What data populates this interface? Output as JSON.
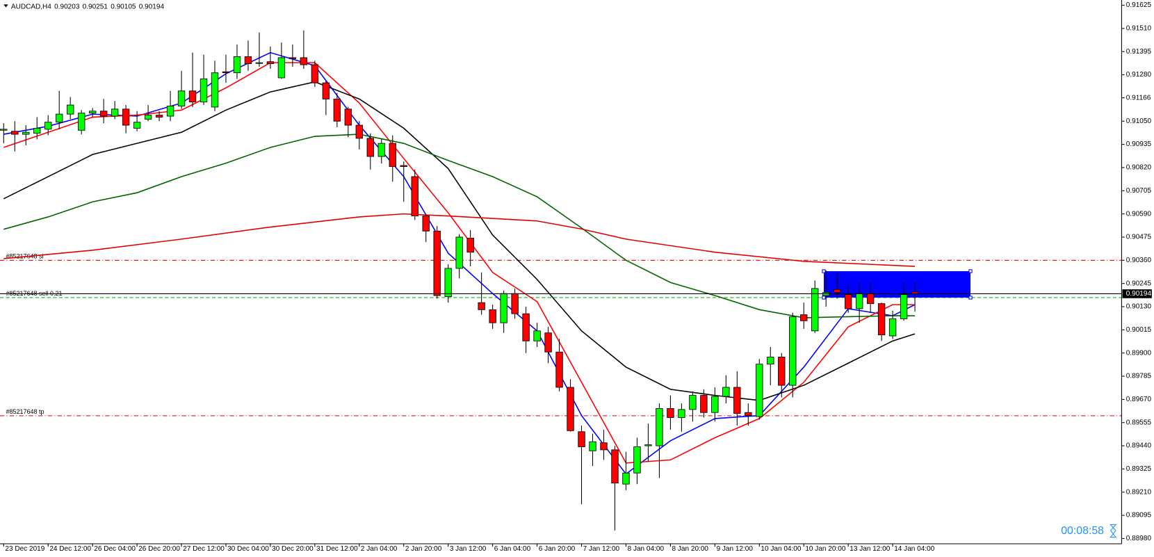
{
  "chart_data": {
    "type": "candlestick",
    "title": "AUDCAD,H4",
    "categories": [
      "23 Dec 2019",
      null,
      null,
      null,
      "24 Dec 12:00",
      null,
      null,
      null,
      "26 Dec 04:00",
      null,
      null,
      null,
      "26 Dec 20:00",
      null,
      null,
      null,
      "27 Dec 12:00",
      null,
      null,
      null,
      "30 Dec 04:00",
      null,
      null,
      null,
      "30 Dec 20:00",
      null,
      null,
      null,
      "31 Dec 12:00",
      null,
      null,
      null,
      "2 Jan 04:00",
      null,
      null,
      null,
      "2 Jan 20:00",
      null,
      null,
      null,
      "3 Jan 12:00",
      null,
      null,
      null,
      "6 Jan 04:00",
      null,
      null,
      null,
      "6 Jan 20:00",
      null,
      null,
      null,
      "7 Jan 12:00",
      null,
      null,
      null,
      "8 Jan 04:00",
      null,
      null,
      null,
      "8 Jan 20:00",
      null,
      null,
      null,
      "9 Jan 12:00",
      null,
      null,
      null,
      "10 Jan 04:00",
      null,
      null,
      null,
      "10 Jan 20:00",
      null,
      null,
      null,
      "13 Jan 12:00",
      null,
      null,
      null,
      "14 Jan 04:00",
      null,
      null
    ],
    "open": [
      0.91005,
      0.91,
      0.90985,
      0.9099,
      0.9101,
      0.91045,
      0.91085,
      0.91005,
      0.9109,
      0.911,
      0.91075,
      0.9111,
      0.91015,
      0.9106,
      0.9108,
      0.91075,
      0.91125,
      0.912,
      0.91145,
      0.9112,
      0.91295,
      0.9129,
      0.9137,
      0.9134,
      0.91345,
      0.91265,
      0.91365,
      0.91365,
      0.9133,
      0.9124,
      0.9116,
      0.9111,
      0.9103,
      0.90965,
      0.90875,
      0.9094,
      0.9083,
      0.90775,
      0.9058,
      0.90505,
      0.9018,
      0.9032,
      0.9047,
      0.9015,
      0.90115,
      0.9005,
      0.90195,
      0.90095,
      0.8996,
      0.9,
      0.89905,
      0.8973,
      0.8951,
      0.89415,
      0.89455,
      0.8942,
      0.8925,
      0.89305,
      0.8944,
      0.8944,
      0.89625,
      0.8958,
      0.8962,
      0.8969,
      0.89605,
      0.89685,
      0.8973,
      0.89605,
      0.89585,
      0.89845,
      0.8988,
      0.8974,
      0.9009,
      0.9001,
      0.90185,
      0.90215,
      0.9019,
      0.9012,
      0.90195,
      0.90145,
      0.89985,
      0.9007,
      0.90203
    ],
    "high": [
      0.9104,
      0.9105,
      0.9103,
      0.9107,
      0.9108,
      0.912,
      0.9117,
      0.91105,
      0.91115,
      0.9116,
      0.9115,
      0.9113,
      0.911,
      0.9113,
      0.911,
      0.912,
      0.913,
      0.9139,
      0.9138,
      0.9135,
      0.9138,
      0.9143,
      0.9145,
      0.9149,
      0.9142,
      0.9144,
      0.9143,
      0.915,
      0.9135,
      0.9125,
      0.9119,
      0.9112,
      0.9105,
      0.9099,
      0.9096,
      0.9098,
      0.9085,
      0.9081,
      0.9059,
      0.9053,
      0.9034,
      0.9049,
      0.9051,
      0.903,
      0.9014,
      0.9021,
      0.9022,
      0.9013,
      0.9005,
      0.9003,
      0.8997,
      0.8977,
      0.8954,
      0.895,
      0.8952,
      0.8944,
      0.8941,
      0.8948,
      0.8955,
      0.8965,
      0.8969,
      0.8965,
      0.8971,
      0.8972,
      0.8973,
      0.8979,
      0.8981,
      0.8965,
      0.8987,
      0.8993,
      0.899,
      0.901,
      0.9015,
      0.9026,
      0.9031,
      0.903,
      0.9024,
      0.9025,
      0.9025,
      0.9015,
      0.9011,
      0.9025,
      0.90251
    ],
    "low": [
      0.9094,
      0.909,
      0.9093,
      0.9096,
      0.9098,
      0.9101,
      0.9106,
      0.90985,
      0.9107,
      0.9104,
      0.9106,
      0.9099,
      0.91,
      0.9105,
      0.9105,
      0.9105,
      0.9111,
      0.9112,
      0.9113,
      0.911,
      0.9124,
      0.9126,
      0.913,
      0.9132,
      0.9131,
      0.9126,
      0.9132,
      0.9131,
      0.9122,
      0.9108,
      0.9102,
      0.9097,
      0.9091,
      0.9081,
      0.9084,
      0.9075,
      0.9065,
      0.9056,
      0.9045,
      0.9017,
      0.9015,
      0.9027,
      0.9033,
      0.9009,
      0.9002,
      0.9,
      0.9007,
      0.899,
      0.8993,
      0.8985,
      0.8971,
      0.8951,
      0.8915,
      0.8934,
      0.8937,
      0.8902,
      0.8922,
      0.8925,
      0.8936,
      0.8928,
      0.8952,
      0.8951,
      0.8956,
      0.8958,
      0.8956,
      0.8965,
      0.8954,
      0.8954,
      0.8957,
      0.8974,
      0.8968,
      0.8968,
      0.9002,
      0.9,
      0.9013,
      0.9017,
      0.901,
      0.9005,
      0.901,
      0.8996,
      0.8997,
      0.9006,
      0.90105
    ],
    "close": [
      0.9101,
      0.90985,
      0.90995,
      0.91015,
      0.91045,
      0.91085,
      0.9113,
      0.9109,
      0.911,
      0.91075,
      0.9111,
      0.9103,
      0.91045,
      0.9108,
      0.9107,
      0.91125,
      0.912,
      0.91145,
      0.9126,
      0.9129,
      0.9129,
      0.9137,
      0.91335,
      0.9134,
      0.91335,
      0.91365,
      0.9136,
      0.9133,
      0.9124,
      0.9116,
      0.9105,
      0.9103,
      0.90965,
      0.90875,
      0.9094,
      0.90825,
      0.90825,
      0.9058,
      0.90505,
      0.90185,
      0.9032,
      0.90475,
      0.904,
      0.90115,
      0.9005,
      0.90195,
      0.90095,
      0.8996,
      0.9001,
      0.89905,
      0.8973,
      0.89515,
      0.89435,
      0.8946,
      0.8942,
      0.89255,
      0.89305,
      0.89435,
      0.89445,
      0.89625,
      0.8958,
      0.8962,
      0.8969,
      0.89605,
      0.89685,
      0.8973,
      0.896,
      0.8959,
      0.89845,
      0.8988,
      0.8974,
      0.9008,
      0.9006,
      0.9022,
      0.902,
      0.902,
      0.9012,
      0.90195,
      0.90145,
      0.8999,
      0.9007,
      0.9019,
      0.90194
    ],
    "up_color": "#00ff00",
    "down_color": "#ff0000",
    "lines": [
      {
        "color": "#0000ff",
        "x": [
          0,
          4,
          8,
          12,
          16,
          20,
          24,
          28,
          32,
          36,
          40,
          44,
          48,
          52,
          56,
          60,
          64,
          68,
          72,
          76,
          80,
          82
        ],
        "values": [
          0.90985,
          0.91025,
          0.91085,
          0.91075,
          0.9114,
          0.91285,
          0.9139,
          0.91325,
          0.9103,
          0.90775,
          0.90395,
          0.90195,
          0.9001,
          0.8959,
          0.893,
          0.89465,
          0.89575,
          0.8959,
          0.8983,
          0.9012,
          0.90085,
          0.9014
        ]
      },
      {
        "color": "#ff0000",
        "x": [
          0,
          4,
          8,
          12,
          16,
          20,
          24,
          28,
          32,
          36,
          40,
          44,
          48,
          52,
          56,
          60,
          64,
          68,
          72,
          76,
          80,
          82
        ],
        "values": [
          0.9092,
          0.90995,
          0.9107,
          0.9108,
          0.91105,
          0.91215,
          0.9134,
          0.9134,
          0.9114,
          0.90865,
          0.90595,
          0.903,
          0.90155,
          0.89755,
          0.89355,
          0.8937,
          0.8948,
          0.89575,
          0.89755,
          0.9003,
          0.9014,
          0.9014
        ]
      },
      {
        "color": "#000000",
        "x": [
          0,
          4,
          8,
          12,
          16,
          20,
          24,
          28,
          32,
          36,
          40,
          44,
          48,
          52,
          56,
          60,
          64,
          68,
          72,
          76,
          80,
          82
        ],
        "values": [
          0.90665,
          0.90775,
          0.90885,
          0.9094,
          0.90995,
          0.91105,
          0.91195,
          0.91245,
          0.9116,
          0.91015,
          0.90815,
          0.90485,
          0.90265,
          0.9001,
          0.8983,
          0.8972,
          0.8969,
          0.89665,
          0.8974,
          0.8985,
          0.8996,
          0.89995
        ]
      },
      {
        "color": "#006400",
        "x": [
          0,
          4,
          8,
          12,
          16,
          20,
          24,
          28,
          32,
          36,
          40,
          44,
          48,
          52,
          56,
          60,
          64,
          68,
          72,
          76,
          80,
          82
        ],
        "values": [
          0.90514,
          0.90575,
          0.9065,
          0.90695,
          0.90775,
          0.90842,
          0.9092,
          0.90975,
          0.90985,
          0.9094,
          0.90855,
          0.90775,
          0.90675,
          0.9052,
          0.9036,
          0.9025,
          0.90185,
          0.90115,
          0.90075,
          0.9008,
          0.90085,
          0.90085
        ]
      },
      {
        "color": "#e00000",
        "x": [
          0,
          8,
          16,
          24,
          32,
          36,
          40,
          48,
          52,
          56,
          64,
          72,
          82
        ],
        "values": [
          0.90368,
          0.9041,
          0.90465,
          0.90525,
          0.90575,
          0.9059,
          0.9058,
          0.90555,
          0.90515,
          0.90465,
          0.904,
          0.90355,
          0.9033
        ]
      }
    ],
    "levels": [
      {
        "label": "#85217648 sl",
        "value": 0.9036,
        "color": "#e00000",
        "style": "dashdot"
      },
      {
        "label": "#85217648 sell 0.21",
        "value": 0.90175,
        "color": "#00c000",
        "style": "dash"
      },
      {
        "label": "#85217648 tp",
        "value": 0.89589,
        "color": "#e00000",
        "style": "dashdot"
      }
    ],
    "rectangle": {
      "x": [
        73.8,
        87
      ],
      "y": [
        0.90175,
        0.90306
      ],
      "color": "#0000ff"
    },
    "timer": "00:08:58",
    "xlim": [
      -0.33,
      100.6
    ],
    "ylim": [
      0.88954,
      0.91651
    ],
    "yticks": [
      {
        "value": 0.91625,
        "label": "0.91625"
      },
      {
        "value": 0.9151,
        "label": "0.91510"
      },
      {
        "value": 0.91395,
        "label": "0.91395"
      },
      {
        "value": 0.9128,
        "label": "0.91280"
      },
      {
        "value": 0.91166,
        "label": "0.91166"
      },
      {
        "value": 0.9105,
        "label": "0.91050"
      },
      {
        "value": 0.90935,
        "label": "0.90935"
      },
      {
        "value": 0.9082,
        "label": "0.90820"
      },
      {
        "value": 0.90705,
        "label": "0.90705"
      },
      {
        "value": 0.9059,
        "label": "0.90590"
      },
      {
        "value": 0.90475,
        "label": "0.90475"
      },
      {
        "value": 0.9036,
        "label": "0.90360"
      },
      {
        "value": 0.90245,
        "label": "0.90245"
      },
      {
        "value": 0.9013,
        "label": "0.90130"
      },
      {
        "value": 0.90015,
        "label": "0.90015"
      },
      {
        "value": 0.899,
        "label": "0.89900"
      },
      {
        "value": 0.89785,
        "label": "0.89785"
      },
      {
        "value": 0.8967,
        "label": "0.89670"
      },
      {
        "value": 0.89555,
        "label": "0.89555"
      },
      {
        "value": 0.8944,
        "label": "0.89440"
      },
      {
        "value": 0.89325,
        "label": "0.89325"
      },
      {
        "value": 0.8921,
        "label": "0.89210"
      },
      {
        "value": 0.89095,
        "label": "0.89095"
      },
      {
        "value": 0.8898,
        "label": "0.88980"
      }
    ]
  }
}
